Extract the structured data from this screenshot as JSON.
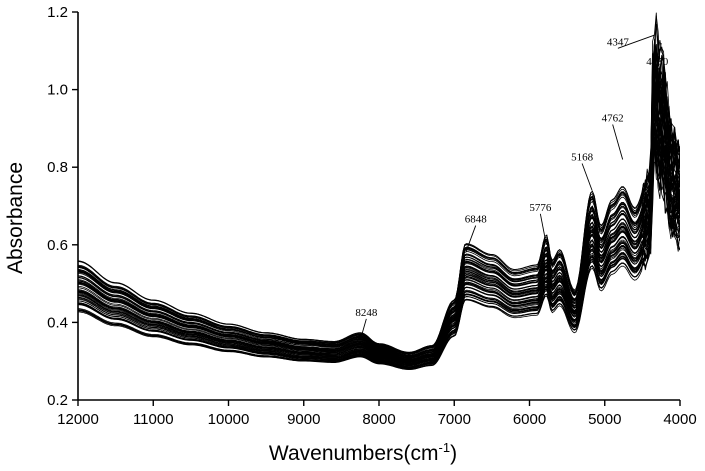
{
  "chart_data": {
    "type": "line",
    "xlabel": "Wavenumbers(cm",
    "xlabel_sup": "-1",
    "xlabel_end": ")",
    "ylabel": "Absorbance",
    "xlim": [
      12000,
      4000
    ],
    "ylim": [
      0.2,
      1.2
    ],
    "x_ticks": [
      "12000",
      "11000",
      "10000",
      "9000",
      "8000",
      "7000",
      "6000",
      "5000",
      "4000"
    ],
    "x_tick_values": [
      12000,
      11000,
      10000,
      9000,
      8000,
      7000,
      6000,
      5000,
      4000
    ],
    "y_ticks": [
      "0.2",
      "0.4",
      "0.6",
      "0.8",
      "1.0",
      "1.2"
    ],
    "y_tick_values": [
      0.2,
      0.4,
      0.6,
      0.8,
      1.0,
      1.2
    ],
    "series_count": 60,
    "line_color": "#000000",
    "representative_spectrum": {
      "x": [
        12000,
        11500,
        11000,
        10500,
        10000,
        9500,
        9000,
        8600,
        8248,
        8000,
        7600,
        7300,
        7000,
        6848,
        6500,
        6200,
        5900,
        5776,
        5700,
        5600,
        5400,
        5168,
        5050,
        4900,
        4762,
        4600,
        4400,
        4347,
        4250,
        4100,
        4000
      ],
      "y": [
        0.52,
        0.47,
        0.43,
        0.4,
        0.375,
        0.355,
        0.34,
        0.335,
        0.355,
        0.33,
        0.31,
        0.325,
        0.43,
        0.56,
        0.535,
        0.5,
        0.51,
        0.58,
        0.52,
        0.545,
        0.45,
        0.68,
        0.6,
        0.66,
        0.69,
        0.64,
        0.72,
        1.05,
        0.98,
        0.82,
        0.78
      ]
    },
    "peaks": [
      {
        "label": "8248",
        "x": 8248,
        "y": 0.355
      },
      {
        "label": "6848",
        "x": 6848,
        "y": 0.58
      },
      {
        "label": "5776",
        "x": 5776,
        "y": 0.6
      },
      {
        "label": "5168",
        "x": 5168,
        "y": 0.74
      },
      {
        "label": "4762",
        "x": 4762,
        "y": 0.82
      },
      {
        "label": "4347",
        "x": 4347,
        "y": 1.14
      },
      {
        "label": "4250",
        "x": 4250,
        "y": 1.12
      }
    ]
  }
}
